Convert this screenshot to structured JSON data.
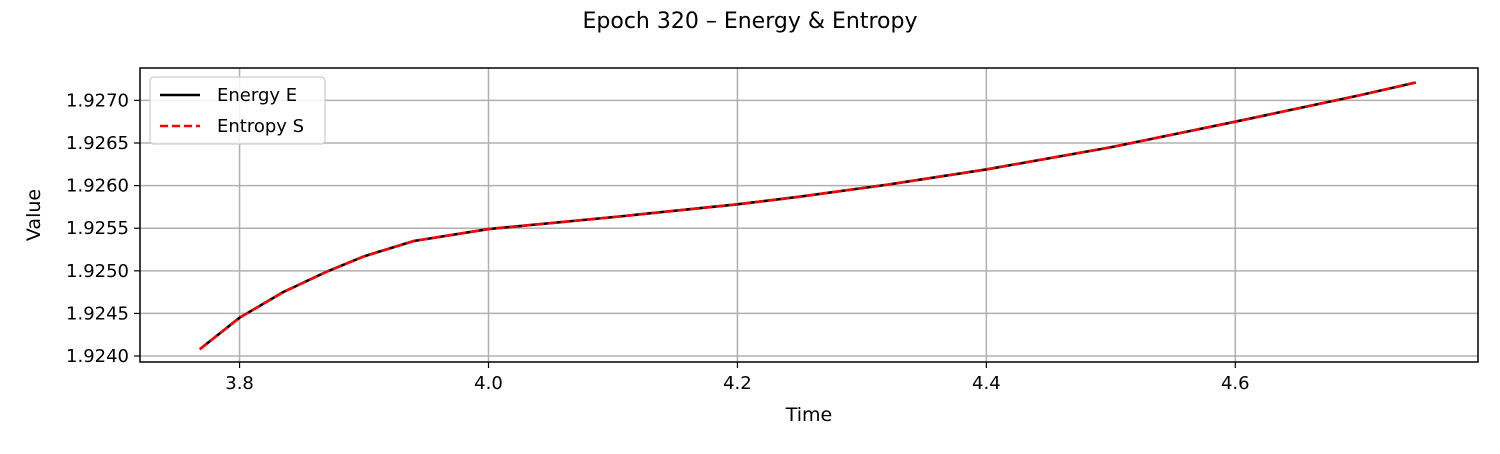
{
  "chart_data": {
    "type": "line",
    "title": "Epoch 320 – Energy & Entropy",
    "xlabel": "Time",
    "ylabel": "Value",
    "xlim": [
      3.72,
      4.795
    ],
    "ylim": [
      1.92393,
      1.92738
    ],
    "xticks": [
      3.8,
      4.0,
      4.2,
      4.4,
      4.6
    ],
    "xtick_labels": [
      "3.8",
      "4.0",
      "4.2",
      "4.4",
      "4.6"
    ],
    "yticks": [
      1.924,
      1.9245,
      1.925,
      1.9255,
      1.926,
      1.9265,
      1.927
    ],
    "ytick_labels": [
      "1.9240",
      "1.9245",
      "1.9250",
      "1.9255",
      "1.9260",
      "1.9265",
      "1.9270"
    ],
    "grid": true,
    "legend_position": "upper-left",
    "x": [
      3.768,
      3.8,
      3.835,
      3.87,
      3.9,
      3.94,
      4.0,
      4.1,
      4.2,
      4.25,
      4.32,
      4.4,
      4.5,
      4.6,
      4.7,
      4.745
    ],
    "series": [
      {
        "name": "Energy E",
        "color": "#000000",
        "style": "solid",
        "values": [
          1.92408,
          1.92445,
          1.92475,
          1.92499,
          1.92517,
          1.92535,
          1.92549,
          1.92563,
          1.92578,
          1.92587,
          1.92601,
          1.92619,
          1.92645,
          1.92675,
          1.92706,
          1.92721
        ]
      },
      {
        "name": "Entropy S",
        "color": "#ff0000",
        "style": "dashed",
        "values": [
          1.92408,
          1.92445,
          1.92475,
          1.92499,
          1.92517,
          1.92535,
          1.92549,
          1.92563,
          1.92578,
          1.92587,
          1.92601,
          1.92619,
          1.92645,
          1.92675,
          1.92706,
          1.92721
        ]
      }
    ]
  }
}
